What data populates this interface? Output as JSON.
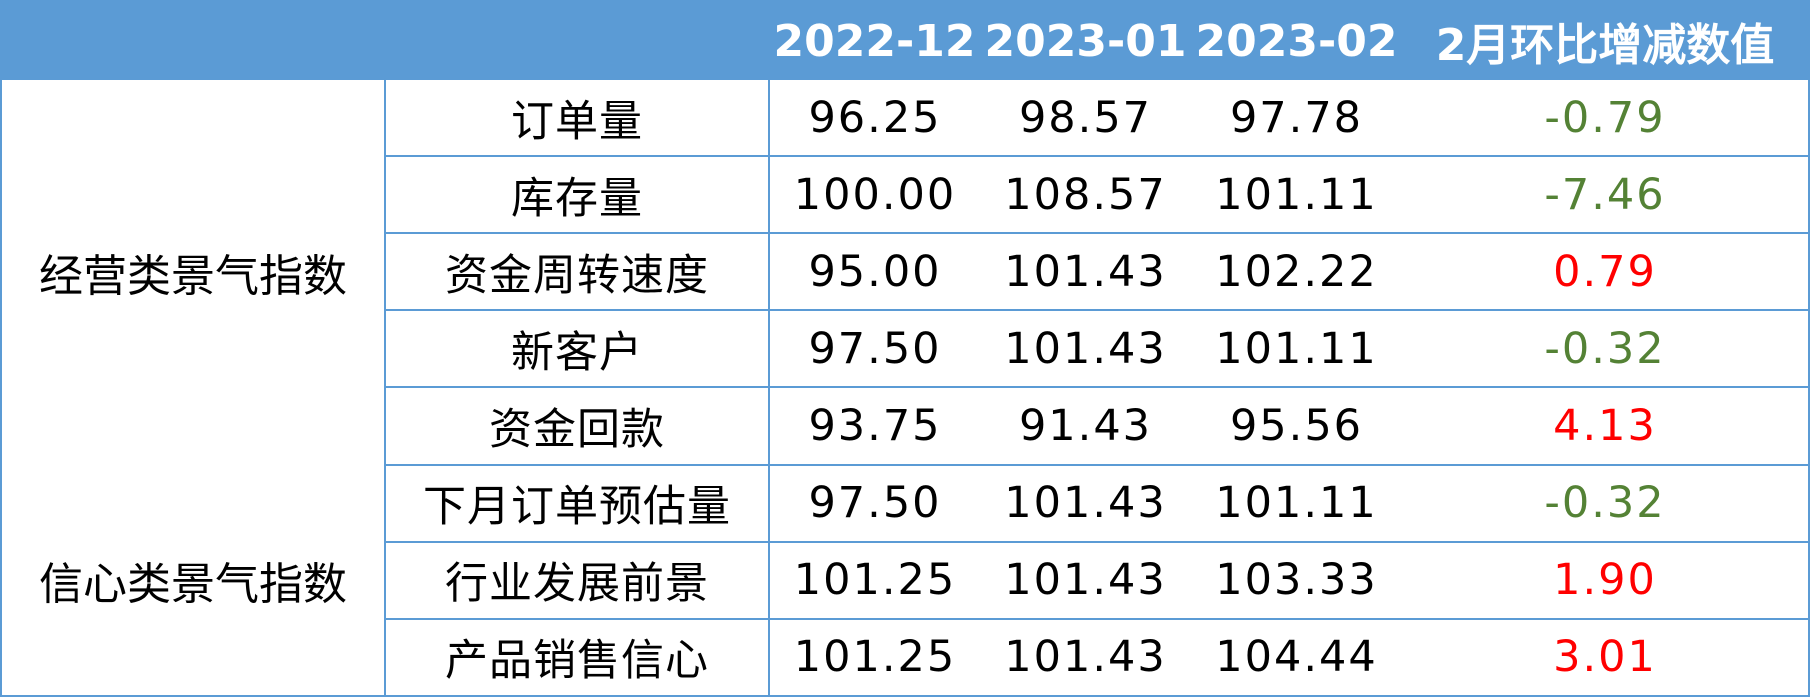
{
  "header": {
    "blank": "",
    "periods": [
      "2022-12",
      "2023-01",
      "2023-02"
    ],
    "change_label": "2月环比增减数值"
  },
  "colors": {
    "header_bg": "#5b9bd5",
    "header_text": "#ffffff",
    "border": "#5b9bd5",
    "positive": "#ff0000",
    "negative": "#548235"
  },
  "groups": [
    {
      "name": "经营类景气指数",
      "rowspan": 5
    },
    {
      "name": "信心类景气指数",
      "rowspan": 3
    }
  ],
  "rows": [
    {
      "item": "订单量",
      "v1": "96.25",
      "v2": "98.57",
      "v3": "97.78",
      "change": "-0.79",
      "sign": "negative"
    },
    {
      "item": "库存量",
      "v1": "100.00",
      "v2": "108.57",
      "v3": "101.11",
      "change": "-7.46",
      "sign": "negative"
    },
    {
      "item": "资金周转速度",
      "v1": "95.00",
      "v2": "101.43",
      "v3": "102.22",
      "change": "0.79",
      "sign": "positive"
    },
    {
      "item": "新客户",
      "v1": "97.50",
      "v2": "101.43",
      "v3": "101.11",
      "change": "-0.32",
      "sign": "negative"
    },
    {
      "item": "资金回款",
      "v1": "93.75",
      "v2": "91.43",
      "v3": "95.56",
      "change": "4.13",
      "sign": "positive"
    },
    {
      "item": "下月订单预估量",
      "v1": "97.50",
      "v2": "101.43",
      "v3": "101.11",
      "change": "-0.32",
      "sign": "negative"
    },
    {
      "item": "行业发展前景",
      "v1": "101.25",
      "v2": "101.43",
      "v3": "103.33",
      "change": "1.90",
      "sign": "positive"
    },
    {
      "item": "产品销售信心",
      "v1": "101.25",
      "v2": "101.43",
      "v3": "104.44",
      "change": "3.01",
      "sign": "positive"
    }
  ]
}
